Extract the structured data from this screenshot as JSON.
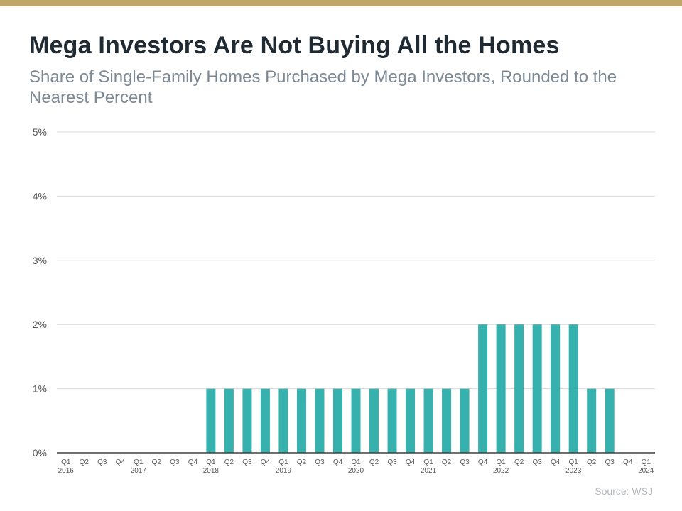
{
  "header": {
    "title": "Mega Investors Are Not Buying All the Homes",
    "subtitle": "Share of Single-Family Homes Purchased by Mega Investors, Rounded to the Nearest Percent"
  },
  "source": "Source: WSJ",
  "colors": {
    "accent_bar": "#bfa767",
    "bar": "#36b1ad",
    "grid": "#d9d9d9",
    "axis": "#404040",
    "tick_text": "#595959"
  },
  "chart_data": {
    "type": "bar",
    "title": "Mega Investors Are Not Buying All the Homes",
    "subtitle": "Share of Single-Family Homes Purchased by Mega Investors, Rounded to the Nearest Percent",
    "xlabel": "",
    "ylabel": "",
    "ylim": [
      0,
      5
    ],
    "y_ticks": [
      "0%",
      "1%",
      "2%",
      "3%",
      "4%",
      "5%"
    ],
    "grid": true,
    "legend": "none",
    "categories": [
      {
        "q": "Q1",
        "year": "2016"
      },
      {
        "q": "Q2",
        "year": ""
      },
      {
        "q": "Q3",
        "year": ""
      },
      {
        "q": "Q4",
        "year": ""
      },
      {
        "q": "Q1",
        "year": "2017"
      },
      {
        "q": "Q2",
        "year": ""
      },
      {
        "q": "Q3",
        "year": ""
      },
      {
        "q": "Q4",
        "year": ""
      },
      {
        "q": "Q1",
        "year": "2018"
      },
      {
        "q": "Q2",
        "year": ""
      },
      {
        "q": "Q3",
        "year": ""
      },
      {
        "q": "Q4",
        "year": ""
      },
      {
        "q": "Q1",
        "year": "2019"
      },
      {
        "q": "Q2",
        "year": ""
      },
      {
        "q": "Q3",
        "year": ""
      },
      {
        "q": "Q4",
        "year": ""
      },
      {
        "q": "Q1",
        "year": "2020"
      },
      {
        "q": "Q2",
        "year": ""
      },
      {
        "q": "Q3",
        "year": ""
      },
      {
        "q": "Q4",
        "year": ""
      },
      {
        "q": "Q1",
        "year": "2021"
      },
      {
        "q": "Q2",
        "year": ""
      },
      {
        "q": "Q3",
        "year": ""
      },
      {
        "q": "Q4",
        "year": ""
      },
      {
        "q": "Q1",
        "year": "2022"
      },
      {
        "q": "Q2",
        "year": ""
      },
      {
        "q": "Q3",
        "year": ""
      },
      {
        "q": "Q4",
        "year": ""
      },
      {
        "q": "Q1",
        "year": "2023"
      },
      {
        "q": "Q2",
        "year": ""
      },
      {
        "q": "Q3",
        "year": ""
      },
      {
        "q": "Q4",
        "year": ""
      },
      {
        "q": "Q1",
        "year": "2024"
      }
    ],
    "values": [
      0,
      0,
      0,
      0,
      0,
      0,
      0,
      0,
      1,
      1,
      1,
      1,
      1,
      1,
      1,
      1,
      1,
      1,
      1,
      1,
      1,
      1,
      1,
      2,
      2,
      2,
      2,
      2,
      2,
      1,
      1,
      0,
      0
    ]
  }
}
